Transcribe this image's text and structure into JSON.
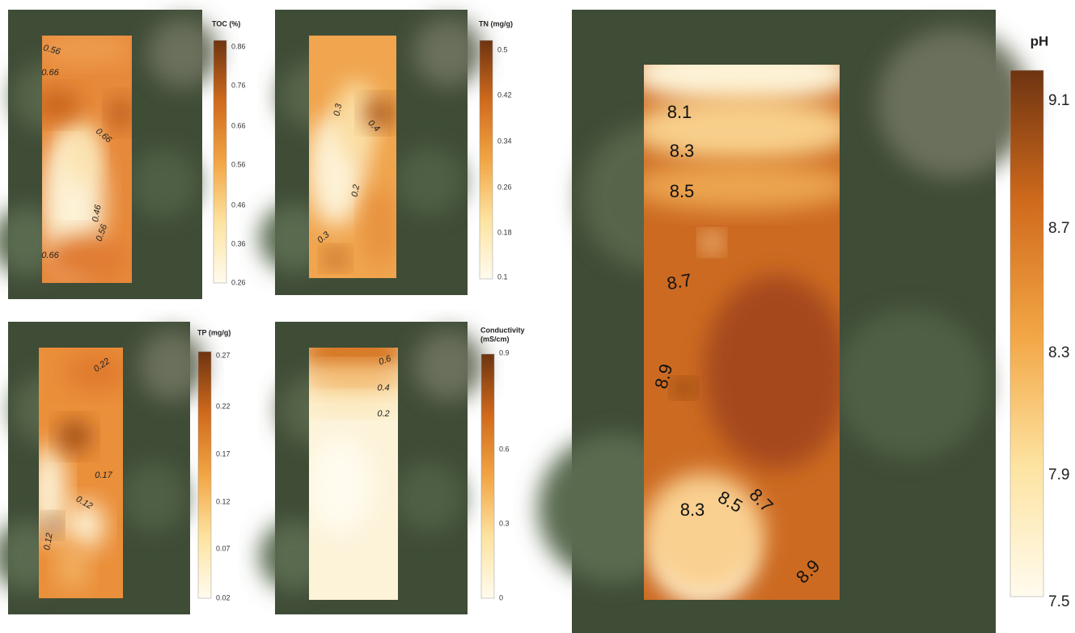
{
  "panels": [
    {
      "title": [
        "TOC (%)"
      ],
      "ticks": [
        "0.86",
        "0.76",
        "0.66",
        "0.56",
        "0.46",
        "0.36",
        "0.26"
      ],
      "contour_labels": [
        "0.56",
        "0.66",
        "0.66",
        "0.46",
        "0.56",
        "0.66"
      ]
    },
    {
      "title": [
        "TN (mg/g)"
      ],
      "ticks": [
        "0.5",
        "0.42",
        "0.34",
        "0.26",
        "0.18",
        "0.1"
      ],
      "contour_labels": [
        "0.3",
        "0.4",
        "0.2",
        "0.3"
      ]
    },
    {
      "title": [
        "TP (mg/g)"
      ],
      "ticks": [
        "0.27",
        "0.22",
        "0.17",
        "0.12",
        "0.07",
        "0.02"
      ],
      "contour_labels": [
        "0.22",
        "0.17",
        "0.12",
        "0.12"
      ]
    },
    {
      "title": [
        "Conductivity",
        "(mS/cm)"
      ],
      "ticks": [
        "0.9",
        "0.6",
        "0.3",
        "0"
      ],
      "contour_labels": [
        "0.6",
        "0.4",
        "0.2"
      ]
    },
    {
      "title": [
        "pH"
      ],
      "ticks": [
        "9.1",
        "8.7",
        "8.3",
        "7.9",
        "7.5"
      ],
      "contour_labels": [
        "8.1",
        "8.3",
        "8.5",
        "8.7",
        "8.9",
        "8.3",
        "8.5",
        "8.7",
        "8.9"
      ]
    }
  ]
}
